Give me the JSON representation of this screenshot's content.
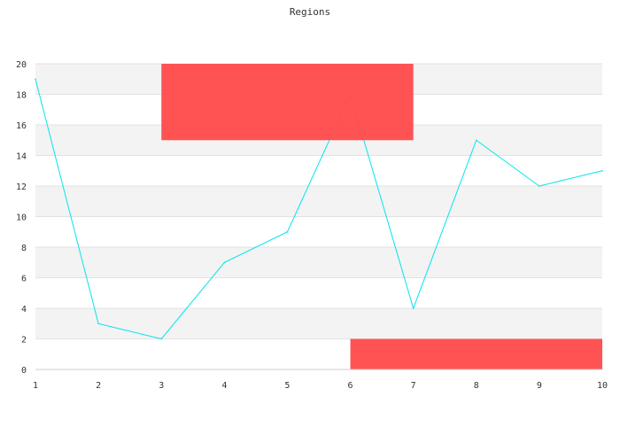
{
  "chart_data": {
    "type": "line",
    "title": "Regions",
    "xlabel": "",
    "ylabel": "",
    "x": [
      1,
      2,
      3,
      4,
      5,
      6,
      7,
      8,
      9,
      10
    ],
    "series": [
      {
        "values": [
          19,
          3,
          2,
          7,
          9,
          18,
          4,
          15,
          12,
          13
        ],
        "color": "#00e5ee"
      }
    ],
    "xlim": [
      1,
      10
    ],
    "ylim": [
      0,
      20
    ],
    "x_ticks": [
      "1",
      "2",
      "3",
      "4",
      "5",
      "6",
      "7",
      "8",
      "9",
      "10"
    ],
    "y_ticks": [
      "0",
      "2",
      "4",
      "6",
      "8",
      "10",
      "12",
      "14",
      "16",
      "18",
      "20"
    ],
    "grid": "horizontal alternating bands",
    "band_color": "#f3f3f3",
    "regions": [
      {
        "x": [
          3,
          7
        ],
        "y": [
          15,
          20
        ],
        "color": "#ff4a4a"
      },
      {
        "x": [
          6,
          10
        ],
        "y": [
          0,
          2
        ],
        "color": "#ff4a4a"
      }
    ]
  }
}
